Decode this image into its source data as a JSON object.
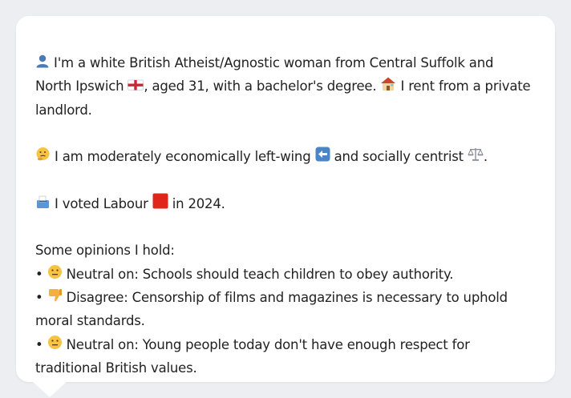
{
  "bio": {
    "line1_icon": "bust-in-silhouette-icon",
    "line1_a": "I'm a white British Atheist/Agnostic woman from Central Suffolk and",
    "line2_a": "North Ipswich",
    "line2_flag_icon": "england-flag-icon",
    "line2_b": ", aged 31, with a bachelor's degree.",
    "line2_house_icon": "house-icon",
    "line2_c": "I rent from a private",
    "line3": "landlord."
  },
  "politics": {
    "thinking_icon": "thinking-face-icon",
    "text_a": "I am moderately economically left-wing",
    "left_arrow_icon": "left-arrow-icon",
    "text_b": "and socially centrist",
    "scales_icon": "balance-scale-icon",
    "text_c": "."
  },
  "vote": {
    "ballot_icon": "ballot-box-icon",
    "text_a": "I voted Labour",
    "party_square_icon": "red-square-icon",
    "party_color": "#e0251b",
    "text_b": "in 2024."
  },
  "opinions": {
    "heading": "Some opinions I hold:",
    "items": [
      {
        "bullet": "•",
        "icon": "neutral-face-icon",
        "line1": "Neutral on: Schools should teach children to obey authority.",
        "line2": ""
      },
      {
        "bullet": "•",
        "icon": "thumbs-down-icon",
        "line1": "Disagree: Censorship of films and magazines is necessary to uphold",
        "line2": "moral standards."
      },
      {
        "bullet": "•",
        "icon": "neutral-face-icon",
        "line1": "Neutral on: Young people today don't have enough respect for",
        "line2": "traditional British values."
      }
    ]
  }
}
